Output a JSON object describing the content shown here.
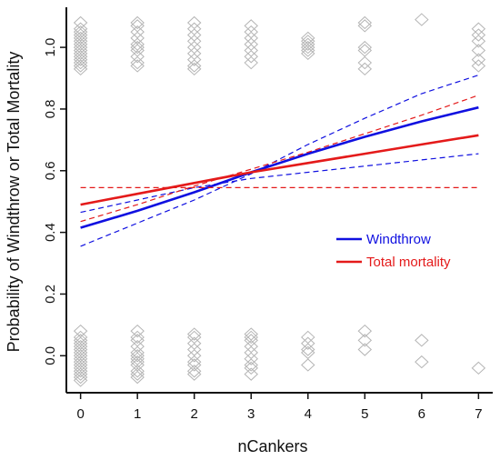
{
  "chart_data": {
    "type": "line",
    "xlabel": "nCankers",
    "ylabel": "Probability of Windthrow or Total Mortality",
    "xlim": [
      -0.25,
      7.25
    ],
    "ylim": [
      -0.12,
      1.13
    ],
    "x_ticks": [
      "0",
      "1",
      "2",
      "3",
      "4",
      "5",
      "6",
      "7"
    ],
    "y_ticks": [
      "0.0",
      "0.2",
      "0.4",
      "0.6",
      "0.8",
      "1.0"
    ],
    "grid": false,
    "legend_position": "right-middle",
    "colors": {
      "windthrow": "#1010e0",
      "total_mortality": "#e41a1a",
      "points": "#b4b4b4"
    },
    "legend": [
      {
        "label": "Windthrow",
        "color": "#1010e0"
      },
      {
        "label": "Total mortality",
        "color": "#e41a1a"
      }
    ],
    "series": [
      {
        "name": "Windthrow",
        "style": "solid",
        "color": "#1010e0",
        "x": [
          0,
          1,
          2,
          3,
          4,
          5,
          6,
          7
        ],
        "y": [
          0.415,
          0.47,
          0.53,
          0.595,
          0.655,
          0.71,
          0.76,
          0.805
        ]
      },
      {
        "style": "dashed",
        "color": "#1010e0",
        "x": [
          0,
          1,
          2,
          3,
          4,
          5,
          6,
          7
        ],
        "y": [
          0.355,
          0.43,
          0.505,
          0.59,
          0.685,
          0.77,
          0.85,
          0.91
        ]
      },
      {
        "style": "dashed",
        "color": "#1010e0",
        "x": [
          0,
          1,
          2,
          3,
          4,
          5,
          6,
          7
        ],
        "y": [
          0.465,
          0.505,
          0.545,
          0.575,
          0.595,
          0.615,
          0.635,
          0.655
        ]
      },
      {
        "name": "Total mortality",
        "style": "solid",
        "color": "#e41a1a",
        "x": [
          0,
          1,
          2,
          3,
          4,
          5,
          6,
          7
        ],
        "y": [
          0.49,
          0.525,
          0.56,
          0.595,
          0.625,
          0.655,
          0.685,
          0.715
        ]
      },
      {
        "style": "dashed",
        "color": "#e41a1a",
        "x": [
          0,
          1,
          2,
          3,
          4,
          5,
          6,
          7
        ],
        "y": [
          0.435,
          0.49,
          0.55,
          0.605,
          0.66,
          0.72,
          0.78,
          0.845
        ]
      },
      {
        "style": "dashed",
        "color": "#e41a1a",
        "x": [
          0,
          7
        ],
        "y": [
          0.545,
          0.545
        ]
      }
    ],
    "scatter_points": [
      {
        "x": 0,
        "y": [
          1.08,
          1.06,
          1.05,
          1.04,
          1.03,
          1.02,
          1.01,
          1.0,
          0.99,
          0.98,
          0.97,
          0.96,
          0.95,
          0.94,
          0.93
        ]
      },
      {
        "x": 1,
        "y": [
          1.08,
          1.07,
          1.05,
          1.03,
          1.01,
          1.0,
          0.99,
          0.97,
          0.95,
          0.94
        ]
      },
      {
        "x": 2,
        "y": [
          1.08,
          1.06,
          1.04,
          1.02,
          1.0,
          0.98,
          0.96,
          0.94,
          0.93
        ]
      },
      {
        "x": 3,
        "y": [
          1.07,
          1.05,
          1.03,
          1.01,
          0.99,
          0.97,
          0.95
        ]
      },
      {
        "x": 4,
        "y": [
          1.03,
          1.02,
          1.01,
          1.0,
          0.99,
          0.98
        ]
      },
      {
        "x": 5,
        "y": [
          1.08,
          1.07,
          1.0,
          0.99,
          0.95,
          0.93
        ]
      },
      {
        "x": 6,
        "y": [
          1.09
        ]
      },
      {
        "x": 7,
        "y": [
          1.06,
          1.04,
          1.02,
          0.99,
          0.96,
          0.94
        ]
      },
      {
        "x": 0,
        "y": [
          0.08,
          0.06,
          0.05,
          0.04,
          0.03,
          0.02,
          0.01,
          0.0,
          -0.01,
          -0.02,
          -0.03,
          -0.04,
          -0.05,
          -0.06,
          -0.07,
          -0.08
        ]
      },
      {
        "x": 1,
        "y": [
          0.08,
          0.06,
          0.05,
          0.03,
          0.01,
          0.0,
          -0.01,
          -0.02,
          -0.03,
          -0.05,
          -0.06,
          -0.07
        ]
      },
      {
        "x": 2,
        "y": [
          0.07,
          0.06,
          0.04,
          0.02,
          0.0,
          -0.02,
          -0.03,
          -0.05,
          -0.06
        ]
      },
      {
        "x": 3,
        "y": [
          0.07,
          0.06,
          0.05,
          0.03,
          0.01,
          -0.01,
          -0.03,
          -0.04,
          -0.06
        ]
      },
      {
        "x": 4,
        "y": [
          0.06,
          0.04,
          0.02,
          0.01,
          -0.03
        ]
      },
      {
        "x": 5,
        "y": [
          0.08,
          0.05,
          0.02
        ]
      },
      {
        "x": 6,
        "y": [
          0.05,
          -0.02
        ]
      },
      {
        "x": 7,
        "y": [
          -0.04
        ]
      }
    ]
  }
}
